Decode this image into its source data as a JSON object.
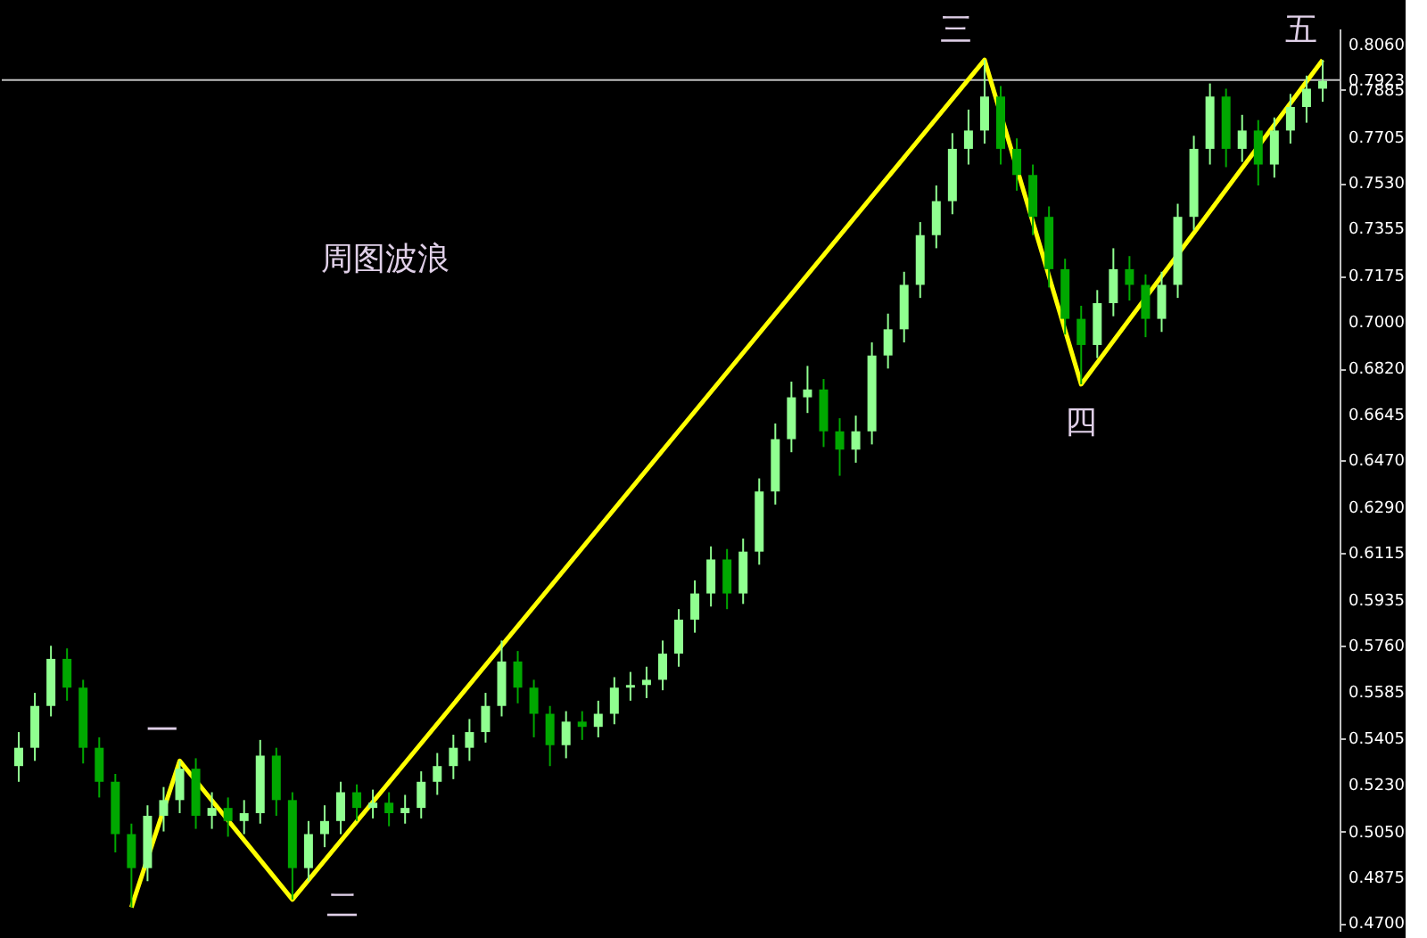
{
  "chart_data": {
    "type": "candlestick",
    "categories": [
      null,
      null,
      null,
      null,
      null,
      null,
      null,
      null,
      null,
      null,
      null,
      null,
      null,
      null,
      null,
      null,
      null,
      null,
      null,
      null,
      null,
      null,
      null,
      null,
      null,
      null,
      null,
      null,
      null,
      null,
      null,
      null,
      null,
      null,
      null,
      null,
      null,
      null,
      null,
      null,
      null,
      null,
      null,
      null,
      null,
      null,
      null,
      null,
      null,
      null,
      null,
      null,
      null,
      null,
      null,
      null,
      null,
      null,
      null,
      null,
      null,
      null,
      null,
      null,
      null,
      null,
      null,
      null,
      null,
      null,
      null,
      null,
      null,
      null,
      null,
      null,
      null,
      null,
      null,
      null,
      null,
      null
    ],
    "series": [
      {
        "type": "candlestick",
        "colors": [
          "#90ff90",
          "#90ff90",
          "#90ff90",
          "#00a800",
          "#00a800",
          "#00a800",
          "#00a800",
          "#00a800",
          "#90ff90",
          "#90ff90",
          "#90ff90",
          "#00a800",
          "#90ff90",
          "#00a800",
          "#90ff90",
          "#90ff90",
          "#00a800",
          "#00a800",
          "#90ff90",
          "#90ff90",
          "#90ff90",
          "#00a800",
          "#90ff90",
          "#00a800",
          "#90ff90",
          "#90ff90",
          "#90ff90",
          "#90ff90",
          "#90ff90",
          "#90ff90",
          "#90ff90",
          "#00a800",
          "#00a800",
          "#00a800",
          "#90ff90",
          "#00a800",
          "#90ff90",
          "#90ff90",
          "#90ff90",
          "#90ff90",
          "#90ff90",
          "#90ff90",
          "#90ff90",
          "#90ff90",
          "#00a800",
          "#90ff90",
          "#90ff90",
          "#90ff90",
          "#90ff90",
          "#90ff90",
          "#00a800",
          "#00a800",
          "#90ff90",
          "#90ff90",
          "#90ff90",
          "#90ff90",
          "#90ff90",
          "#90ff90",
          "#90ff90",
          "#90ff90",
          "#90ff90",
          "#00a800",
          "#00a800",
          "#00a800",
          "#00a800",
          "#00a800",
          "#00a800",
          "#90ff90",
          "#90ff90",
          "#00a800",
          "#00a800",
          "#90ff90",
          "#90ff90",
          "#90ff90",
          "#90ff90",
          "#00a800",
          "#90ff90",
          "#00a800",
          "#90ff90",
          "#90ff90",
          "#90ff90",
          "#90ff90"
        ],
        "ohlc": [
          [
            0.53,
            0.543,
            0.524,
            0.537
          ],
          [
            0.537,
            0.558,
            0.532,
            0.553
          ],
          [
            0.553,
            0.576,
            0.549,
            0.571
          ],
          [
            0.571,
            0.575,
            0.555,
            0.56
          ],
          [
            0.56,
            0.563,
            0.531,
            0.537
          ],
          [
            0.537,
            0.541,
            0.518,
            0.524
          ],
          [
            0.524,
            0.527,
            0.497,
            0.504
          ],
          [
            0.504,
            0.508,
            0.476,
            0.491
          ],
          [
            0.491,
            0.515,
            0.486,
            0.511
          ],
          [
            0.511,
            0.522,
            0.505,
            0.517
          ],
          [
            0.517,
            0.532,
            0.512,
            0.529
          ],
          [
            0.529,
            0.533,
            0.506,
            0.511
          ],
          [
            0.511,
            0.52,
            0.506,
            0.514
          ],
          [
            0.514,
            0.518,
            0.503,
            0.509
          ],
          [
            0.509,
            0.517,
            0.504,
            0.512
          ],
          [
            0.512,
            0.54,
            0.508,
            0.534
          ],
          [
            0.534,
            0.537,
            0.511,
            0.517
          ],
          [
            0.517,
            0.52,
            0.479,
            0.491
          ],
          [
            0.491,
            0.509,
            0.486,
            0.504
          ],
          [
            0.504,
            0.515,
            0.499,
            0.509
          ],
          [
            0.509,
            0.524,
            0.504,
            0.52
          ],
          [
            0.52,
            0.523,
            0.509,
            0.514
          ],
          [
            0.514,
            0.521,
            0.51,
            0.516
          ],
          [
            0.516,
            0.52,
            0.507,
            0.512
          ],
          [
            0.512,
            0.519,
            0.508,
            0.514
          ],
          [
            0.514,
            0.528,
            0.51,
            0.524
          ],
          [
            0.524,
            0.535,
            0.519,
            0.53
          ],
          [
            0.53,
            0.542,
            0.525,
            0.537
          ],
          [
            0.537,
            0.548,
            0.532,
            0.543
          ],
          [
            0.543,
            0.558,
            0.539,
            0.553
          ],
          [
            0.553,
            0.578,
            0.549,
            0.57
          ],
          [
            0.57,
            0.574,
            0.554,
            0.56
          ],
          [
            0.56,
            0.563,
            0.541,
            0.55
          ],
          [
            0.55,
            0.553,
            0.53,
            0.538
          ],
          [
            0.538,
            0.551,
            0.533,
            0.547
          ],
          [
            0.547,
            0.551,
            0.54,
            0.545
          ],
          [
            0.545,
            0.555,
            0.541,
            0.55
          ],
          [
            0.55,
            0.564,
            0.546,
            0.56
          ],
          [
            0.56,
            0.566,
            0.555,
            0.561
          ],
          [
            0.561,
            0.568,
            0.556,
            0.563
          ],
          [
            0.563,
            0.578,
            0.559,
            0.573
          ],
          [
            0.573,
            0.59,
            0.568,
            0.586
          ],
          [
            0.586,
            0.601,
            0.581,
            0.596
          ],
          [
            0.596,
            0.614,
            0.591,
            0.609
          ],
          [
            0.609,
            0.613,
            0.59,
            0.596
          ],
          [
            0.596,
            0.617,
            0.592,
            0.612
          ],
          [
            0.612,
            0.64,
            0.607,
            0.635
          ],
          [
            0.635,
            0.661,
            0.63,
            0.655
          ],
          [
            0.655,
            0.677,
            0.65,
            0.671
          ],
          [
            0.671,
            0.683,
            0.665,
            0.674
          ],
          [
            0.674,
            0.678,
            0.652,
            0.658
          ],
          [
            0.658,
            0.663,
            0.641,
            0.651
          ],
          [
            0.651,
            0.664,
            0.646,
            0.658
          ],
          [
            0.658,
            0.692,
            0.653,
            0.687
          ],
          [
            0.687,
            0.703,
            0.682,
            0.697
          ],
          [
            0.697,
            0.719,
            0.692,
            0.714
          ],
          [
            0.714,
            0.738,
            0.709,
            0.733
          ],
          [
            0.733,
            0.752,
            0.728,
            0.746
          ],
          [
            0.746,
            0.772,
            0.741,
            0.766
          ],
          [
            0.766,
            0.781,
            0.76,
            0.773
          ],
          [
            0.773,
            0.8,
            0.768,
            0.786
          ],
          [
            0.786,
            0.79,
            0.76,
            0.766
          ],
          [
            0.766,
            0.77,
            0.75,
            0.756
          ],
          [
            0.756,
            0.76,
            0.733,
            0.74
          ],
          [
            0.74,
            0.744,
            0.713,
            0.72
          ],
          [
            0.72,
            0.724,
            0.695,
            0.701
          ],
          [
            0.701,
            0.706,
            0.676,
            0.691
          ],
          [
            0.691,
            0.712,
            0.686,
            0.707
          ],
          [
            0.707,
            0.728,
            0.702,
            0.72
          ],
          [
            0.72,
            0.725,
            0.708,
            0.714
          ],
          [
            0.714,
            0.718,
            0.694,
            0.701
          ],
          [
            0.701,
            0.719,
            0.696,
            0.714
          ],
          [
            0.714,
            0.745,
            0.709,
            0.74
          ],
          [
            0.74,
            0.771,
            0.735,
            0.766
          ],
          [
            0.766,
            0.791,
            0.76,
            0.786
          ],
          [
            0.786,
            0.789,
            0.759,
            0.766
          ],
          [
            0.766,
            0.779,
            0.761,
            0.773
          ],
          [
            0.773,
            0.777,
            0.752,
            0.76
          ],
          [
            0.76,
            0.778,
            0.755,
            0.773
          ],
          [
            0.773,
            0.787,
            0.768,
            0.782
          ],
          [
            0.782,
            0.794,
            0.776,
            0.789
          ],
          [
            0.789,
            0.8,
            0.784,
            0.792
          ]
        ]
      },
      {
        "type": "line",
        "color": "#ffff00",
        "values": [
          null,
          null,
          null,
          null,
          null,
          null,
          null,
          0.476,
          null,
          null,
          0.532,
          null,
          null,
          null,
          null,
          null,
          null,
          0.479,
          null,
          null,
          null,
          null,
          null,
          null,
          null,
          null,
          null,
          null,
          null,
          null,
          null,
          null,
          null,
          null,
          null,
          null,
          null,
          null,
          null,
          null,
          null,
          null,
          null,
          null,
          null,
          null,
          null,
          null,
          null,
          null,
          null,
          null,
          null,
          null,
          null,
          null,
          null,
          null,
          null,
          null,
          0.8,
          null,
          null,
          null,
          null,
          null,
          0.676,
          null,
          null,
          null,
          null,
          null,
          null,
          null,
          null,
          null,
          null,
          null,
          null,
          null,
          null,
          0.8
        ]
      }
    ],
    "annotations": [
      "周图波浪",
      "一",
      "二",
      "三",
      "四",
      "五"
    ],
    "ref_lines": [
      {
        "axis": "y",
        "value": 0.7923,
        "label": "0.7923",
        "color": "#c0c0c0"
      }
    ],
    "ylim": [
      0.467,
      0.812
    ],
    "yticks": [
      {
        "value": 0.806,
        "label": "0.8060"
      },
      {
        "value": 0.7885,
        "label": "0.7885"
      },
      {
        "value": 0.7705,
        "label": "0.7705"
      },
      {
        "value": 0.753,
        "label": "0.7530"
      },
      {
        "value": 0.7355,
        "label": "0.7355"
      },
      {
        "value": 0.7175,
        "label": "0.7175"
      },
      {
        "value": 0.7,
        "label": "0.7000"
      },
      {
        "value": 0.682,
        "label": "0.6820"
      },
      {
        "value": 0.6645,
        "label": "0.6645"
      },
      {
        "value": 0.647,
        "label": "0.6470"
      },
      {
        "value": 0.629,
        "label": "0.6290"
      },
      {
        "value": 0.6115,
        "label": "0.6115"
      },
      {
        "value": 0.5935,
        "label": "0.5935"
      },
      {
        "value": 0.576,
        "label": "0.5760"
      },
      {
        "value": 0.5585,
        "label": "0.5585"
      },
      {
        "value": 0.5405,
        "label": "0.5405"
      },
      {
        "value": 0.523,
        "label": "0.5230"
      },
      {
        "value": 0.505,
        "label": "0.5050"
      },
      {
        "value": 0.4875,
        "label": "0.4875"
      },
      {
        "value": 0.47,
        "label": "0.4700"
      }
    ],
    "tick_labels": "y",
    "grid": false
  }
}
